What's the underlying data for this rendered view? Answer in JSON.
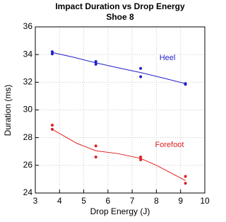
{
  "chart_data": {
    "type": "scatter",
    "title": "Impact Duration vs Drop Energy",
    "subtitle": "Shoe 8",
    "x_label": "Drop Energy  (J)",
    "y_label": "Duration (ms)",
    "xlim": [
      3,
      10
    ],
    "ylim": [
      24,
      36
    ],
    "xticks": [
      3,
      4,
      5,
      6,
      7,
      8,
      9,
      10
    ],
    "yticks": [
      24,
      26,
      28,
      30,
      32,
      34,
      36
    ],
    "grid": true,
    "series": [
      {
        "name": "Heel",
        "color": "#1f1fc8",
        "x": [
          3.7,
          3.7,
          5.5,
          5.5,
          7.35,
          7.35,
          9.2,
          9.2
        ],
        "values": [
          34.2,
          34.05,
          33.5,
          33.3,
          33.0,
          32.4,
          31.9,
          31.85
        ],
        "fit_x": [
          3.7,
          4.6,
          5.5,
          6.4,
          7.35,
          8.3,
          9.2
        ],
        "fit_values": [
          34.15,
          33.8,
          33.4,
          33.05,
          32.7,
          32.3,
          31.9
        ]
      },
      {
        "name": "Forefoot",
        "color": "#dd1f1f",
        "x": [
          3.7,
          3.7,
          5.5,
          5.5,
          7.35,
          7.35,
          9.2,
          9.2
        ],
        "values": [
          28.9,
          28.6,
          27.4,
          26.6,
          26.6,
          26.4,
          25.2,
          24.7
        ],
        "fit_x": [
          3.7,
          4.2,
          4.7,
          5.5,
          6.4,
          7.35,
          8.0,
          8.6,
          9.2
        ],
        "fit_values": [
          28.6,
          28.1,
          27.6,
          27.05,
          26.85,
          26.5,
          26.0,
          25.45,
          24.9
        ]
      }
    ]
  }
}
